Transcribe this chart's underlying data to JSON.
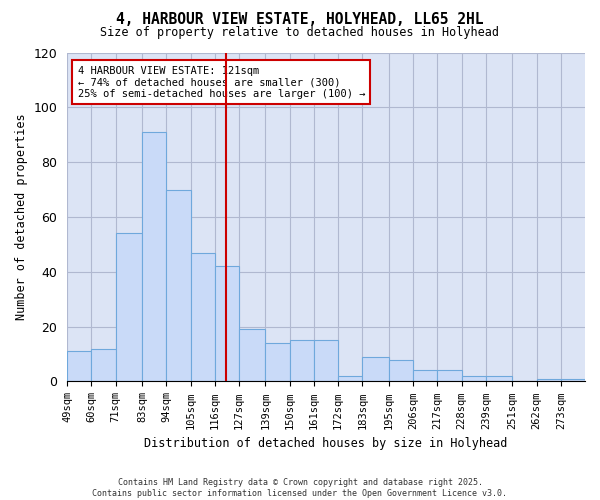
{
  "title": "4, HARBOUR VIEW ESTATE, HOLYHEAD, LL65 2HL",
  "subtitle": "Size of property relative to detached houses in Holyhead",
  "xlabel": "Distribution of detached houses by size in Holyhead",
  "ylabel": "Number of detached properties",
  "footer": "Contains HM Land Registry data © Crown copyright and database right 2025.\nContains public sector information licensed under the Open Government Licence v3.0.",
  "bin_labels": [
    "49sqm",
    "60sqm",
    "71sqm",
    "83sqm",
    "94sqm",
    "105sqm",
    "116sqm",
    "127sqm",
    "139sqm",
    "150sqm",
    "161sqm",
    "172sqm",
    "183sqm",
    "195sqm",
    "206sqm",
    "217sqm",
    "228sqm",
    "239sqm",
    "251sqm",
    "262sqm",
    "273sqm"
  ],
  "bar_heights": [
    11,
    12,
    54,
    91,
    70,
    47,
    42,
    19,
    14,
    15,
    15,
    2,
    9,
    8,
    4,
    4,
    2,
    2,
    0,
    1,
    1
  ],
  "bar_color": "#c9daf8",
  "bar_edge_color": "#6fa8dc",
  "grid_color": "#b0b8d0",
  "background_color": "#dce4f5",
  "annotation_text": "4 HARBOUR VIEW ESTATE: 121sqm\n← 74% of detached houses are smaller (300)\n25% of semi-detached houses are larger (100) →",
  "annotation_box_edge": "#cc0000",
  "vline_x": 121,
  "vline_color": "#cc0000",
  "ylim": [
    0,
    120
  ],
  "bin_edges": [
    49,
    60,
    71,
    83,
    94,
    105,
    116,
    127,
    139,
    150,
    161,
    172,
    183,
    195,
    206,
    217,
    228,
    239,
    251,
    262,
    273,
    284
  ]
}
